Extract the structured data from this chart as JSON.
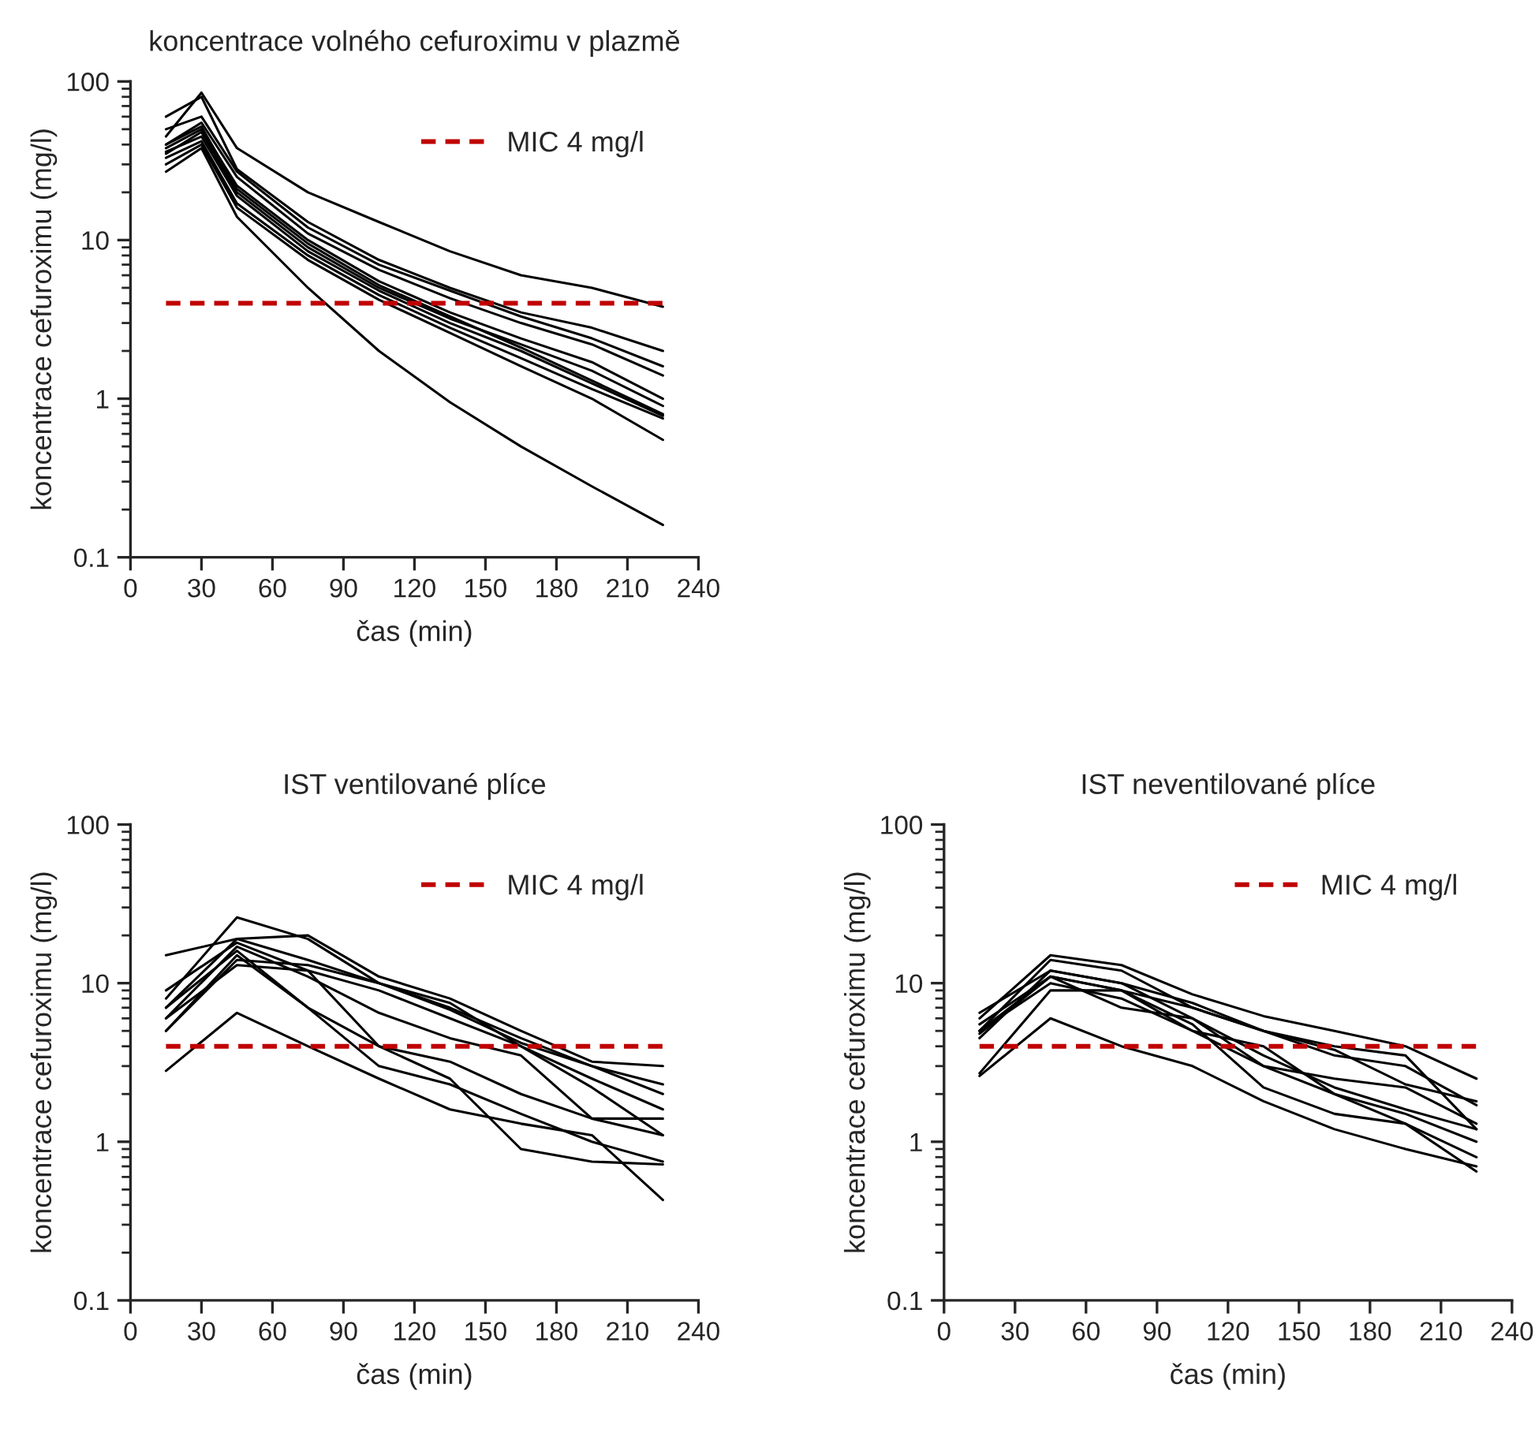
{
  "chart_data": [
    {
      "type": "line",
      "title": "koncentrace volného cefuroximu v plazmě",
      "xlabel": "čas (min)",
      "ylabel": "koncentrace cefuroximu (mg/l)",
      "log": "y",
      "xlim": [
        0,
        240
      ],
      "xticks": [
        0,
        30,
        60,
        90,
        120,
        150,
        180,
        210,
        240
      ],
      "ylim": [
        0.1,
        100
      ],
      "yticks": [
        0.1,
        1,
        10,
        100
      ],
      "grid": false,
      "legend": "top right",
      "marker": "none",
      "line_style": "solid",
      "ref_lines": [
        {
          "axis": "y",
          "value": 4,
          "label": "MIC 4 mg/l",
          "color": "#c00000",
          "line_style": "dashed"
        }
      ],
      "x": [
        15,
        30,
        45,
        75,
        105,
        135,
        165,
        195,
        225
      ],
      "series": [
        {
          "color": "#000000",
          "values": [
            45,
            85,
            38,
            20,
            13,
            8.5,
            6,
            5,
            3.8
          ]
        },
        {
          "color": "#000000",
          "values": [
            60,
            80,
            28,
            13,
            7.5,
            5,
            3.5,
            2.8,
            2.0
          ]
        },
        {
          "color": "#000000",
          "values": [
            50,
            60,
            27,
            12,
            7,
            4.8,
            3.3,
            2.4,
            1.6
          ]
        },
        {
          "color": "#000000",
          "values": [
            40,
            55,
            25,
            11,
            6.5,
            4.3,
            3,
            2.2,
            1.4
          ]
        },
        {
          "color": "#000000",
          "values": [
            38,
            50,
            22,
            10,
            5.5,
            3.5,
            2.4,
            1.7,
            1.0
          ]
        },
        {
          "color": "#000000",
          "values": [
            35,
            48,
            20,
            9,
            5,
            3.2,
            2.2,
            1.5,
            0.9
          ]
        },
        {
          "color": "#000000",
          "values": [
            40,
            52,
            21,
            9.5,
            5.2,
            3.3,
            2.1,
            1.3,
            0.8
          ]
        },
        {
          "color": "#000000",
          "values": [
            36,
            45,
            19,
            8.5,
            4.8,
            3.0,
            2.0,
            1.25,
            0.78
          ]
        },
        {
          "color": "#000000",
          "values": [
            33,
            42,
            17,
            8,
            4.5,
            2.8,
            1.8,
            1.15,
            0.75
          ]
        },
        {
          "color": "#000000",
          "values": [
            30,
            40,
            16,
            7.5,
            4.2,
            2.6,
            1.6,
            1.0,
            0.55
          ]
        },
        {
          "color": "#000000",
          "values": [
            27,
            38,
            14,
            5,
            2,
            0.95,
            0.5,
            0.28,
            0.16
          ]
        }
      ]
    },
    {
      "type": "line",
      "title": "IST ventilované plíce",
      "xlabel": "čas (min)",
      "ylabel": "koncentrace cefuroximu (mg/l)",
      "log": "y",
      "xlim": [
        0,
        240
      ],
      "xticks": [
        0,
        30,
        60,
        90,
        120,
        150,
        180,
        210,
        240
      ],
      "ylim": [
        0.1,
        100
      ],
      "yticks": [
        0.1,
        1,
        10,
        100
      ],
      "grid": false,
      "legend": "top right",
      "marker": "none",
      "line_style": "solid",
      "ref_lines": [
        {
          "axis": "y",
          "value": 4,
          "label": "MIC 4 mg/l",
          "color": "#c00000",
          "line_style": "dashed"
        }
      ],
      "x": [
        15,
        45,
        75,
        105,
        135,
        165,
        195,
        225
      ],
      "series": [
        {
          "color": "#000000",
          "values": [
            15,
            19,
            20,
            11,
            8,
            5,
            3.2,
            3.0
          ]
        },
        {
          "color": "#000000",
          "values": [
            8,
            26,
            19,
            10,
            7,
            4.5,
            3,
            2.3
          ]
        },
        {
          "color": "#000000",
          "values": [
            7,
            19,
            14,
            10,
            6.8,
            4.2,
            3.0,
            2.0
          ]
        },
        {
          "color": "#000000",
          "values": [
            9,
            18,
            12,
            9,
            6,
            4,
            2.5,
            1.6
          ]
        },
        {
          "color": "#000000",
          "values": [
            6,
            17,
            11,
            6.5,
            4.5,
            3.5,
            1.4,
            1.4
          ]
        },
        {
          "color": "#000000",
          "values": [
            5,
            14,
            13,
            10,
            7.5,
            4,
            2.2,
            1.1
          ]
        },
        {
          "color": "#000000",
          "values": [
            7,
            16,
            7,
            4,
            3.2,
            2,
            1.4,
            1.1
          ]
        },
        {
          "color": "#000000",
          "values": [
            5,
            15,
            7,
            3,
            2.3,
            1.5,
            1.0,
            0.75
          ]
        },
        {
          "color": "#000000",
          "values": [
            6,
            13,
            12,
            4,
            2.5,
            0.9,
            0.75,
            0.72
          ]
        },
        {
          "color": "#000000",
          "values": [
            2.8,
            6.5,
            4,
            2.5,
            1.6,
            1.3,
            1.1,
            0.43
          ]
        }
      ]
    },
    {
      "type": "line",
      "title": "IST neventilované plíce",
      "xlabel": "čas (min)",
      "ylabel": "koncentrace cefuroximu (mg/l)",
      "log": "y",
      "xlim": [
        0,
        240
      ],
      "xticks": [
        0,
        30,
        60,
        90,
        120,
        150,
        180,
        210,
        240
      ],
      "ylim": [
        0.1,
        100
      ],
      "yticks": [
        0.1,
        1,
        10,
        100
      ],
      "grid": false,
      "legend": "top right",
      "marker": "none",
      "line_style": "solid",
      "ref_lines": [
        {
          "axis": "y",
          "value": 4,
          "label": "MIC 4 mg/l",
          "color": "#c00000",
          "line_style": "dashed"
        }
      ],
      "x": [
        15,
        45,
        75,
        105,
        135,
        165,
        195,
        225
      ],
      "series": [
        {
          "color": "#000000",
          "values": [
            6,
            15,
            13,
            8.5,
            6.2,
            5,
            4,
            2.5
          ]
        },
        {
          "color": "#000000",
          "values": [
            5,
            14,
            12,
            7,
            5,
            3.5,
            3,
            1.7
          ]
        },
        {
          "color": "#000000",
          "values": [
            6.5,
            12,
            10,
            7.5,
            5,
            3.8,
            2.3,
            1.8
          ]
        },
        {
          "color": "#000000",
          "values": [
            5.5,
            11,
            9,
            7,
            5,
            4,
            3.5,
            1.2
          ]
        },
        {
          "color": "#000000",
          "values": [
            5,
            11,
            7,
            6,
            3,
            2.5,
            2.2,
            1.3
          ]
        },
        {
          "color": "#000000",
          "values": [
            4.5,
            12,
            10,
            6,
            3.5,
            2.2,
            1.6,
            1.2
          ]
        },
        {
          "color": "#000000",
          "values": [
            5,
            10,
            8,
            5,
            4,
            2,
            1.5,
            1.0
          ]
        },
        {
          "color": "#000000",
          "values": [
            4.8,
            11,
            9,
            5.5,
            2.2,
            1.5,
            1.3,
            0.8
          ]
        },
        {
          "color": "#000000",
          "values": [
            2.7,
            9,
            9,
            5,
            3,
            2,
            1.3,
            0.65
          ]
        },
        {
          "color": "#000000",
          "values": [
            2.6,
            6,
            4,
            3,
            1.8,
            1.2,
            0.9,
            0.7
          ]
        }
      ]
    }
  ]
}
